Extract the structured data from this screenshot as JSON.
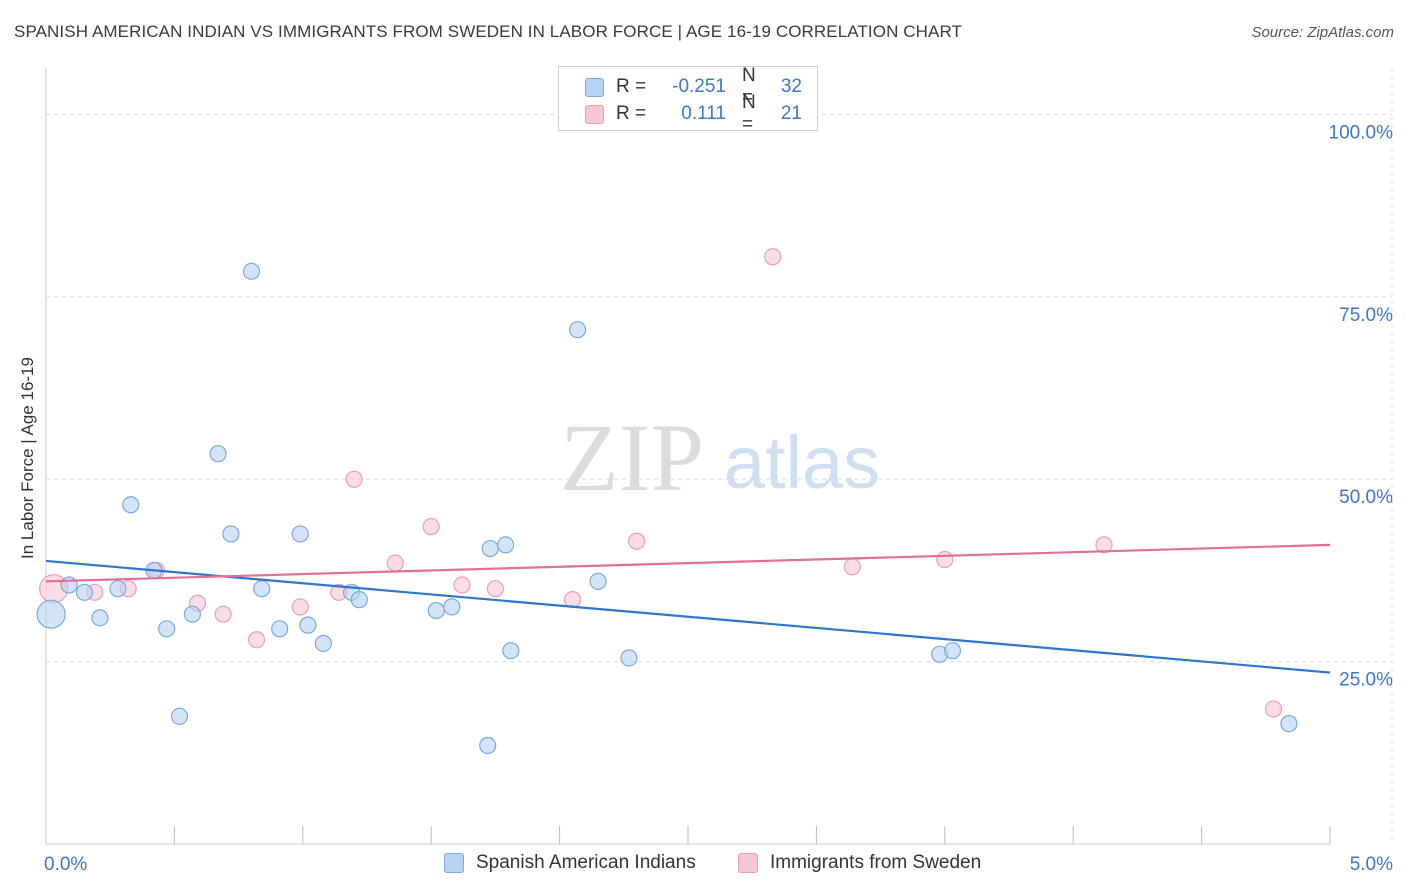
{
  "title": "SPANISH AMERICAN INDIAN VS IMMIGRANTS FROM SWEDEN IN LABOR FORCE | AGE 16-19 CORRELATION CHART",
  "source": "Source: ZipAtlas.com",
  "watermark": {
    "zip": "ZIP",
    "atlas": "atlas"
  },
  "colors": {
    "blue_fill": "#b8d2f2",
    "blue_stroke": "#7aa8e0",
    "blue_line": "#2f74cf",
    "pink_fill": "#f7c6d5",
    "pink_stroke": "#ec9db6",
    "pink_line": "#e07099",
    "axis_text": "#3a78c9",
    "grid": "#dddddd"
  },
  "legend_top": {
    "rows": [
      {
        "r_label": "R =",
        "r_value": "-0.251",
        "n_label": "N =",
        "n_value": "32"
      },
      {
        "r_label": "R =",
        "r_value": "0.111",
        "n_label": "N =",
        "n_value": "21"
      }
    ]
  },
  "legend_bottom": {
    "items": [
      "Spanish American Indians",
      "Immigrants from Sweden"
    ]
  },
  "chart_data": {
    "type": "scatter",
    "title": "SPANISH AMERICAN INDIAN VS IMMIGRANTS FROM SWEDEN IN LABOR FORCE | AGE 16-19 CORRELATION CHART",
    "xlabel": "",
    "ylabel": "In Labor Force | Age 16-19",
    "xlim": [
      0,
      5
    ],
    "ylim": [
      0,
      105
    ],
    "x_tick_labels": [
      {
        "value": 0,
        "label": "0.0%"
      },
      {
        "value": 5,
        "label": "5.0%"
      }
    ],
    "y_tick_labels": [
      {
        "value": 25,
        "label": "25.0%"
      },
      {
        "value": 50,
        "label": "50.0%"
      },
      {
        "value": 75,
        "label": "75.0%"
      },
      {
        "value": 100,
        "label": "100.0%"
      }
    ],
    "y_gridlines": [
      25,
      50,
      75,
      100
    ],
    "x_minor_ticks": [
      0.5,
      1.0,
      1.5,
      2.0,
      2.5,
      3.0,
      3.5,
      4.0,
      4.5,
      5.0
    ],
    "series": [
      {
        "name": "Spanish American Indians",
        "r": -0.251,
        "n": 32,
        "trend": {
          "x0": 0,
          "y0": 38.8,
          "x1": 5,
          "y1": 23.5
        },
        "points": [
          {
            "x": 0.02,
            "y": 31.5,
            "big": true
          },
          {
            "x": 0.09,
            "y": 35.5
          },
          {
            "x": 0.15,
            "y": 34.5
          },
          {
            "x": 0.21,
            "y": 31.0
          },
          {
            "x": 0.28,
            "y": 35.0
          },
          {
            "x": 0.33,
            "y": 46.5
          },
          {
            "x": 0.42,
            "y": 37.5
          },
          {
            "x": 0.47,
            "y": 29.5
          },
          {
            "x": 0.52,
            "y": 17.5
          },
          {
            "x": 0.57,
            "y": 31.5
          },
          {
            "x": 0.67,
            "y": 53.5
          },
          {
            "x": 0.72,
            "y": 42.5
          },
          {
            "x": 0.8,
            "y": 78.5
          },
          {
            "x": 0.84,
            "y": 35.0
          },
          {
            "x": 0.91,
            "y": 29.5
          },
          {
            "x": 0.99,
            "y": 42.5
          },
          {
            "x": 1.02,
            "y": 30.0
          },
          {
            "x": 1.08,
            "y": 27.5
          },
          {
            "x": 1.19,
            "y": 34.5
          },
          {
            "x": 1.22,
            "y": 33.5
          },
          {
            "x": 1.52,
            "y": 32.0
          },
          {
            "x": 1.58,
            "y": 32.5
          },
          {
            "x": 1.72,
            "y": 13.5
          },
          {
            "x": 1.73,
            "y": 40.5
          },
          {
            "x": 1.79,
            "y": 41.0
          },
          {
            "x": 1.81,
            "y": 26.5
          },
          {
            "x": 2.07,
            "y": 70.5
          },
          {
            "x": 2.15,
            "y": 36.0
          },
          {
            "x": 2.27,
            "y": 25.5
          },
          {
            "x": 3.48,
            "y": 26.0
          },
          {
            "x": 3.53,
            "y": 26.5
          },
          {
            "x": 4.84,
            "y": 16.5
          }
        ]
      },
      {
        "name": "Immigrants from Sweden",
        "r": 0.111,
        "n": 21,
        "trend": {
          "x0": 0,
          "y0": 36.0,
          "x1": 5,
          "y1": 41.0
        },
        "points": [
          {
            "x": 0.03,
            "y": 35.0,
            "big": true
          },
          {
            "x": 0.19,
            "y": 34.5
          },
          {
            "x": 0.32,
            "y": 35.0
          },
          {
            "x": 0.43,
            "y": 37.5
          },
          {
            "x": 0.59,
            "y": 33.0
          },
          {
            "x": 0.69,
            "y": 31.5
          },
          {
            "x": 0.82,
            "y": 28.0
          },
          {
            "x": 0.99,
            "y": 32.5
          },
          {
            "x": 1.14,
            "y": 34.5
          },
          {
            "x": 1.2,
            "y": 50.0
          },
          {
            "x": 1.36,
            "y": 38.5
          },
          {
            "x": 1.5,
            "y": 43.5
          },
          {
            "x": 1.62,
            "y": 35.5
          },
          {
            "x": 1.75,
            "y": 35.0
          },
          {
            "x": 2.05,
            "y": 33.5
          },
          {
            "x": 2.3,
            "y": 41.5
          },
          {
            "x": 2.83,
            "y": 80.5
          },
          {
            "x": 3.14,
            "y": 38.0
          },
          {
            "x": 3.5,
            "y": 39.0
          },
          {
            "x": 4.12,
            "y": 41.0
          },
          {
            "x": 4.78,
            "y": 18.5
          }
        ]
      }
    ]
  }
}
